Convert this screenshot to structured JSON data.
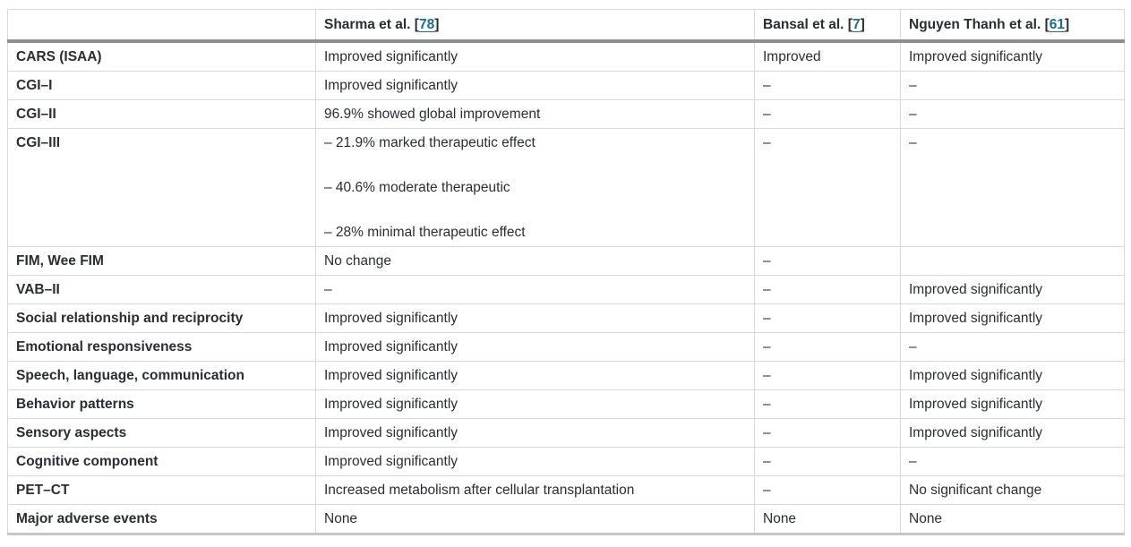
{
  "colors": {
    "text": "#2b2d33",
    "link": "#1e6b88",
    "border_light": "#d9d9d9",
    "border_header_rule": "#8e8e8e",
    "border_bottom_rule": "#c6c6c6",
    "background": "#ffffff"
  },
  "table": {
    "corner_label": "",
    "columns": [
      {
        "id": "sharma",
        "label": "Sharma et al.",
        "ref": "78"
      },
      {
        "id": "bansal",
        "label": "Bansal et al.",
        "ref": "7"
      },
      {
        "id": "nguyen",
        "label": "Nguyen Thanh et al.",
        "ref": "61"
      }
    ],
    "rows": [
      {
        "label": "CARS (ISAA)",
        "cells": [
          "Improved significantly",
          "Improved",
          "Improved significantly"
        ]
      },
      {
        "label": "CGI–I",
        "cells": [
          "Improved significantly",
          "–",
          "–"
        ]
      },
      {
        "label": "CGI–II",
        "cells": [
          "96.9% showed global improvement",
          "–",
          "–"
        ]
      },
      {
        "label": "CGI–III",
        "cells": [
          [
            "– 21.9% marked therapeutic effect",
            "– 40.6% moderate therapeutic",
            "– 28% minimal therapeutic effect"
          ],
          "–",
          "–"
        ]
      },
      {
        "label": "FIM, Wee FIM",
        "cells": [
          "No change",
          "–",
          ""
        ]
      },
      {
        "label": "VAB–II",
        "cells": [
          "–",
          "–",
          "Improved significantly"
        ]
      },
      {
        "label": "Social relationship and reciprocity",
        "cells": [
          "Improved significantly",
          "–",
          "Improved significantly"
        ]
      },
      {
        "label": "Emotional responsiveness",
        "cells": [
          "Improved significantly",
          "–",
          "–"
        ]
      },
      {
        "label": "Speech, language, communication",
        "cells": [
          "Improved significantly",
          "–",
          "Improved significantly"
        ]
      },
      {
        "label": "Behavior patterns",
        "cells": [
          "Improved significantly",
          "–",
          "Improved significantly"
        ]
      },
      {
        "label": "Sensory aspects",
        "cells": [
          "Improved significantly",
          "–",
          "Improved significantly"
        ]
      },
      {
        "label": "Cognitive component",
        "cells": [
          "Improved significantly",
          "–",
          "–"
        ]
      },
      {
        "label": "PET–CT",
        "cells": [
          "Increased metabolism after cellular transplantation",
          "–",
          "No significant change"
        ]
      },
      {
        "label": "Major adverse events",
        "cells": [
          "None",
          "None",
          "None"
        ]
      }
    ]
  }
}
